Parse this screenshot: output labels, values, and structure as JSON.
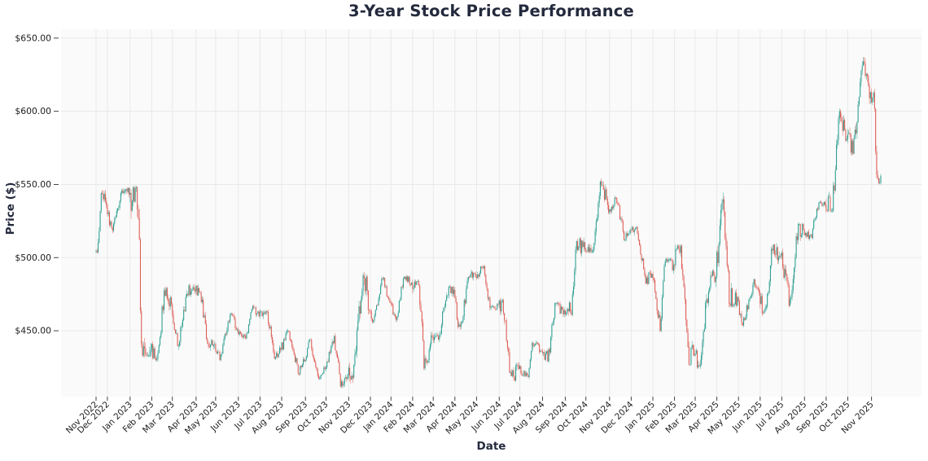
{
  "title": "3-Year Stock Price Performance",
  "x_axis": {
    "label": "Date"
  },
  "y_axis": {
    "label": "Price ($)",
    "tick_labels": [
      "$450.00",
      "$500.00",
      "$550.00",
      "$600.00",
      "$650.00"
    ],
    "tick_values": [
      450,
      500,
      550,
      600,
      650
    ]
  },
  "colors": {
    "up": "#2a9d8f",
    "down": "#dd5a52",
    "grid": "#e9e9e9",
    "plot_bg": "#fafafa",
    "page_bg": "#ffffff",
    "heading_text": "#242a3d",
    "tick_text": "#1c1c1c"
  },
  "chart_data": {
    "type": "candlestick",
    "title": "3-Year Stock Price Performance",
    "xlabel": "Date",
    "ylabel": "Price ($)",
    "ylim": [
      405,
      656
    ],
    "grid": true,
    "x_tick_rotation": 45,
    "monthly_ohlc": [
      {
        "month": "Nov 2022",
        "days": 11,
        "open": 504,
        "high": 549,
        "low": 502,
        "close": 536
      },
      {
        "month": "Dec 2022",
        "days": 22,
        "open": 536,
        "high": 549,
        "low": 516,
        "close": 543
      },
      {
        "month": "Jan 2023",
        "days": 21,
        "open": 543,
        "high": 548,
        "low": 433,
        "close": 437
      },
      {
        "month": "Feb 2023",
        "days": 20,
        "open": 437,
        "high": 479,
        "low": 430,
        "close": 468
      },
      {
        "month": "Mar 2023",
        "days": 23,
        "open": 468,
        "high": 481,
        "low": 436,
        "close": 477
      },
      {
        "month": "Apr 2023",
        "days": 19,
        "open": 477,
        "high": 483,
        "low": 437,
        "close": 441
      },
      {
        "month": "May 2023",
        "days": 22,
        "open": 441,
        "high": 463,
        "low": 430,
        "close": 451
      },
      {
        "month": "Jun 2023",
        "days": 21,
        "open": 451,
        "high": 467,
        "low": 442,
        "close": 460
      },
      {
        "month": "Jul 2023",
        "days": 21,
        "open": 460,
        "high": 467,
        "low": 431,
        "close": 437
      },
      {
        "month": "Aug 2023",
        "days": 23,
        "open": 437,
        "high": 451,
        "low": 420,
        "close": 429
      },
      {
        "month": "Sep 2023",
        "days": 20,
        "open": 429,
        "high": 444,
        "low": 417,
        "close": 424
      },
      {
        "month": "Oct 2023",
        "days": 22,
        "open": 424,
        "high": 448,
        "low": 412,
        "close": 420
      },
      {
        "month": "Nov 2023",
        "days": 21,
        "open": 420,
        "high": 496,
        "low": 415,
        "close": 464
      },
      {
        "month": "Dec 2023",
        "days": 20,
        "open": 464,
        "high": 487,
        "low": 456,
        "close": 469
      },
      {
        "month": "Jan 2024",
        "days": 21,
        "open": 469,
        "high": 487,
        "low": 457,
        "close": 483
      },
      {
        "month": "Feb 2024",
        "days": 20,
        "open": 483,
        "high": 484,
        "low": 424,
        "close": 446
      },
      {
        "month": "Mar 2024",
        "days": 21,
        "open": 446,
        "high": 480,
        "low": 441,
        "close": 478
      },
      {
        "month": "Apr 2024",
        "days": 21,
        "open": 478,
        "high": 491,
        "low": 449,
        "close": 487
      },
      {
        "month": "May 2024",
        "days": 22,
        "open": 487,
        "high": 494,
        "low": 463,
        "close": 468
      },
      {
        "month": "Jun 2024",
        "days": 20,
        "open": 468,
        "high": 471,
        "low": 416,
        "close": 424
      },
      {
        "month": "Jul 2024",
        "days": 22,
        "open": 424,
        "high": 444,
        "low": 418,
        "close": 436
      },
      {
        "month": "Aug 2024",
        "days": 22,
        "open": 436,
        "high": 469,
        "low": 429,
        "close": 464
      },
      {
        "month": "Sep 2024",
        "days": 20,
        "open": 464,
        "high": 513,
        "low": 461,
        "close": 506
      },
      {
        "month": "Oct 2024",
        "days": 23,
        "open": 506,
        "high": 556,
        "low": 504,
        "close": 531
      },
      {
        "month": "Nov 2024",
        "days": 21,
        "open": 531,
        "high": 542,
        "low": 512,
        "close": 519
      },
      {
        "month": "Dec 2024",
        "days": 21,
        "open": 519,
        "high": 521,
        "low": 482,
        "close": 489
      },
      {
        "month": "Jan 2025",
        "days": 21,
        "open": 489,
        "high": 499,
        "low": 450,
        "close": 495
      },
      {
        "month": "Feb 2025",
        "days": 20,
        "open": 495,
        "high": 508,
        "low": 427,
        "close": 433
      },
      {
        "month": "Mar 2025",
        "days": 21,
        "open": 433,
        "high": 491,
        "low": 425,
        "close": 487
      },
      {
        "month": "Apr 2025",
        "days": 21,
        "open": 487,
        "high": 547,
        "low": 467,
        "close": 473
      },
      {
        "month": "May 2025",
        "days": 21,
        "open": 473,
        "high": 486,
        "low": 450,
        "close": 476
      },
      {
        "month": "Jun 2025",
        "days": 21,
        "open": 476,
        "high": 509,
        "low": 457,
        "close": 501
      },
      {
        "month": "Jul 2025",
        "days": 22,
        "open": 501,
        "high": 523,
        "low": 467,
        "close": 519
      },
      {
        "month": "Aug 2025",
        "days": 21,
        "open": 519,
        "high": 538,
        "low": 511,
        "close": 536
      },
      {
        "month": "Sep 2025",
        "days": 21,
        "open": 536,
        "high": 601,
        "low": 532,
        "close": 581
      },
      {
        "month": "Oct 2025",
        "days": 23,
        "open": 581,
        "high": 640,
        "low": 571,
        "close": 613
      },
      {
        "month": "Nov 2025",
        "days": 10,
        "open": 613,
        "high": 616,
        "low": 551,
        "close": 556
      }
    ]
  }
}
